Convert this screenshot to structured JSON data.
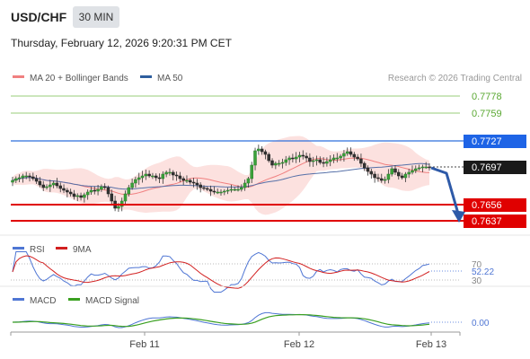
{
  "header": {
    "symbol": "USD/CHF",
    "timeframe": "30 MIN",
    "datetime": "Thursday, February 12, 2026 9:20:31 PM CET"
  },
  "legend_top": {
    "items": [
      {
        "label": "MA 20 + Bollinger Bands",
        "color": "#f08080"
      },
      {
        "label": "MA 50",
        "color": "#2e5e9e"
      }
    ],
    "credit": "Research © 2026 Trading Central"
  },
  "price_levels": [
    {
      "value": "0.7778",
      "color": "#5aa832",
      "kind": "resistance-target"
    },
    {
      "value": "0.7759",
      "color": "#5aa832",
      "kind": "resistance-target"
    },
    {
      "value": "0.7727",
      "color": "#2f6fdc",
      "kind": "pivot"
    },
    {
      "value": "0.7697",
      "color": "#222222",
      "kind": "last-price"
    },
    {
      "value": "0.7656",
      "color": "#e00000",
      "kind": "support-target"
    },
    {
      "value": "0.7637",
      "color": "#e00000",
      "kind": "support-target"
    }
  ],
  "rsi_panel": {
    "legend": [
      {
        "label": "RSI",
        "color": "#4f76d4"
      },
      {
        "label": "9MA",
        "color": "#d22020"
      }
    ],
    "levels": [
      "70",
      "30"
    ],
    "current": "52.22"
  },
  "macd_panel": {
    "legend": [
      {
        "label": "MACD",
        "color": "#4f76d4"
      },
      {
        "label": "MACD Signal",
        "color": "#3aa020"
      }
    ],
    "current": "0.00"
  },
  "x_axis": {
    "ticks": [
      "Feb 11",
      "Feb 12",
      "Feb 13"
    ]
  },
  "chart_data": {
    "type": "candlestick",
    "instrument": "USD/CHF",
    "interval": "30 MIN",
    "y_range": [
      0.762,
      0.7795
    ],
    "close_series": [
      0.7683,
      0.7685,
      0.7686,
      0.7688,
      0.7688,
      0.7687,
      0.7685,
      0.7682,
      0.7678,
      0.7675,
      0.7676,
      0.7678,
      0.768,
      0.7677,
      0.7674,
      0.7672,
      0.767,
      0.7668,
      0.7665,
      0.7666,
      0.7664,
      0.7667,
      0.767,
      0.7672,
      0.7671,
      0.7673,
      0.7676,
      0.7675,
      0.7668,
      0.766,
      0.7652,
      0.7654,
      0.766,
      0.7668,
      0.7675,
      0.768,
      0.7684,
      0.7686,
      0.7688,
      0.769,
      0.7688,
      0.7688,
      0.7686,
      0.7685,
      0.769,
      0.7692,
      0.7692,
      0.7689,
      0.7688,
      0.7685,
      0.7683,
      0.7683,
      0.7681,
      0.768,
      0.7678,
      0.7675,
      0.7674,
      0.7673,
      0.7671,
      0.767,
      0.767,
      0.767,
      0.7671,
      0.7672,
      0.7673,
      0.7673,
      0.7673,
      0.7675,
      0.768,
      0.7685,
      0.77,
      0.7716,
      0.7718,
      0.7715,
      0.7712,
      0.7705,
      0.77,
      0.7702,
      0.7702,
      0.7703,
      0.7706,
      0.7708,
      0.7707,
      0.7709,
      0.7711,
      0.771,
      0.7708,
      0.7704,
      0.7705,
      0.7706,
      0.7703,
      0.7702,
      0.7704,
      0.7706,
      0.7708,
      0.7708,
      0.771,
      0.7713,
      0.7715,
      0.7712,
      0.7709,
      0.7707,
      0.7702,
      0.7697,
      0.7693,
      0.769,
      0.7686,
      0.7685,
      0.7683,
      0.7684,
      0.769,
      0.7696,
      0.7692,
      0.7688,
      0.7686,
      0.769,
      0.7692,
      0.7694,
      0.7696,
      0.7697,
      0.7698,
      0.7698,
      0.7697
    ],
    "annotations": {
      "forecast_arrow": "down from last price toward 0.7637"
    }
  }
}
